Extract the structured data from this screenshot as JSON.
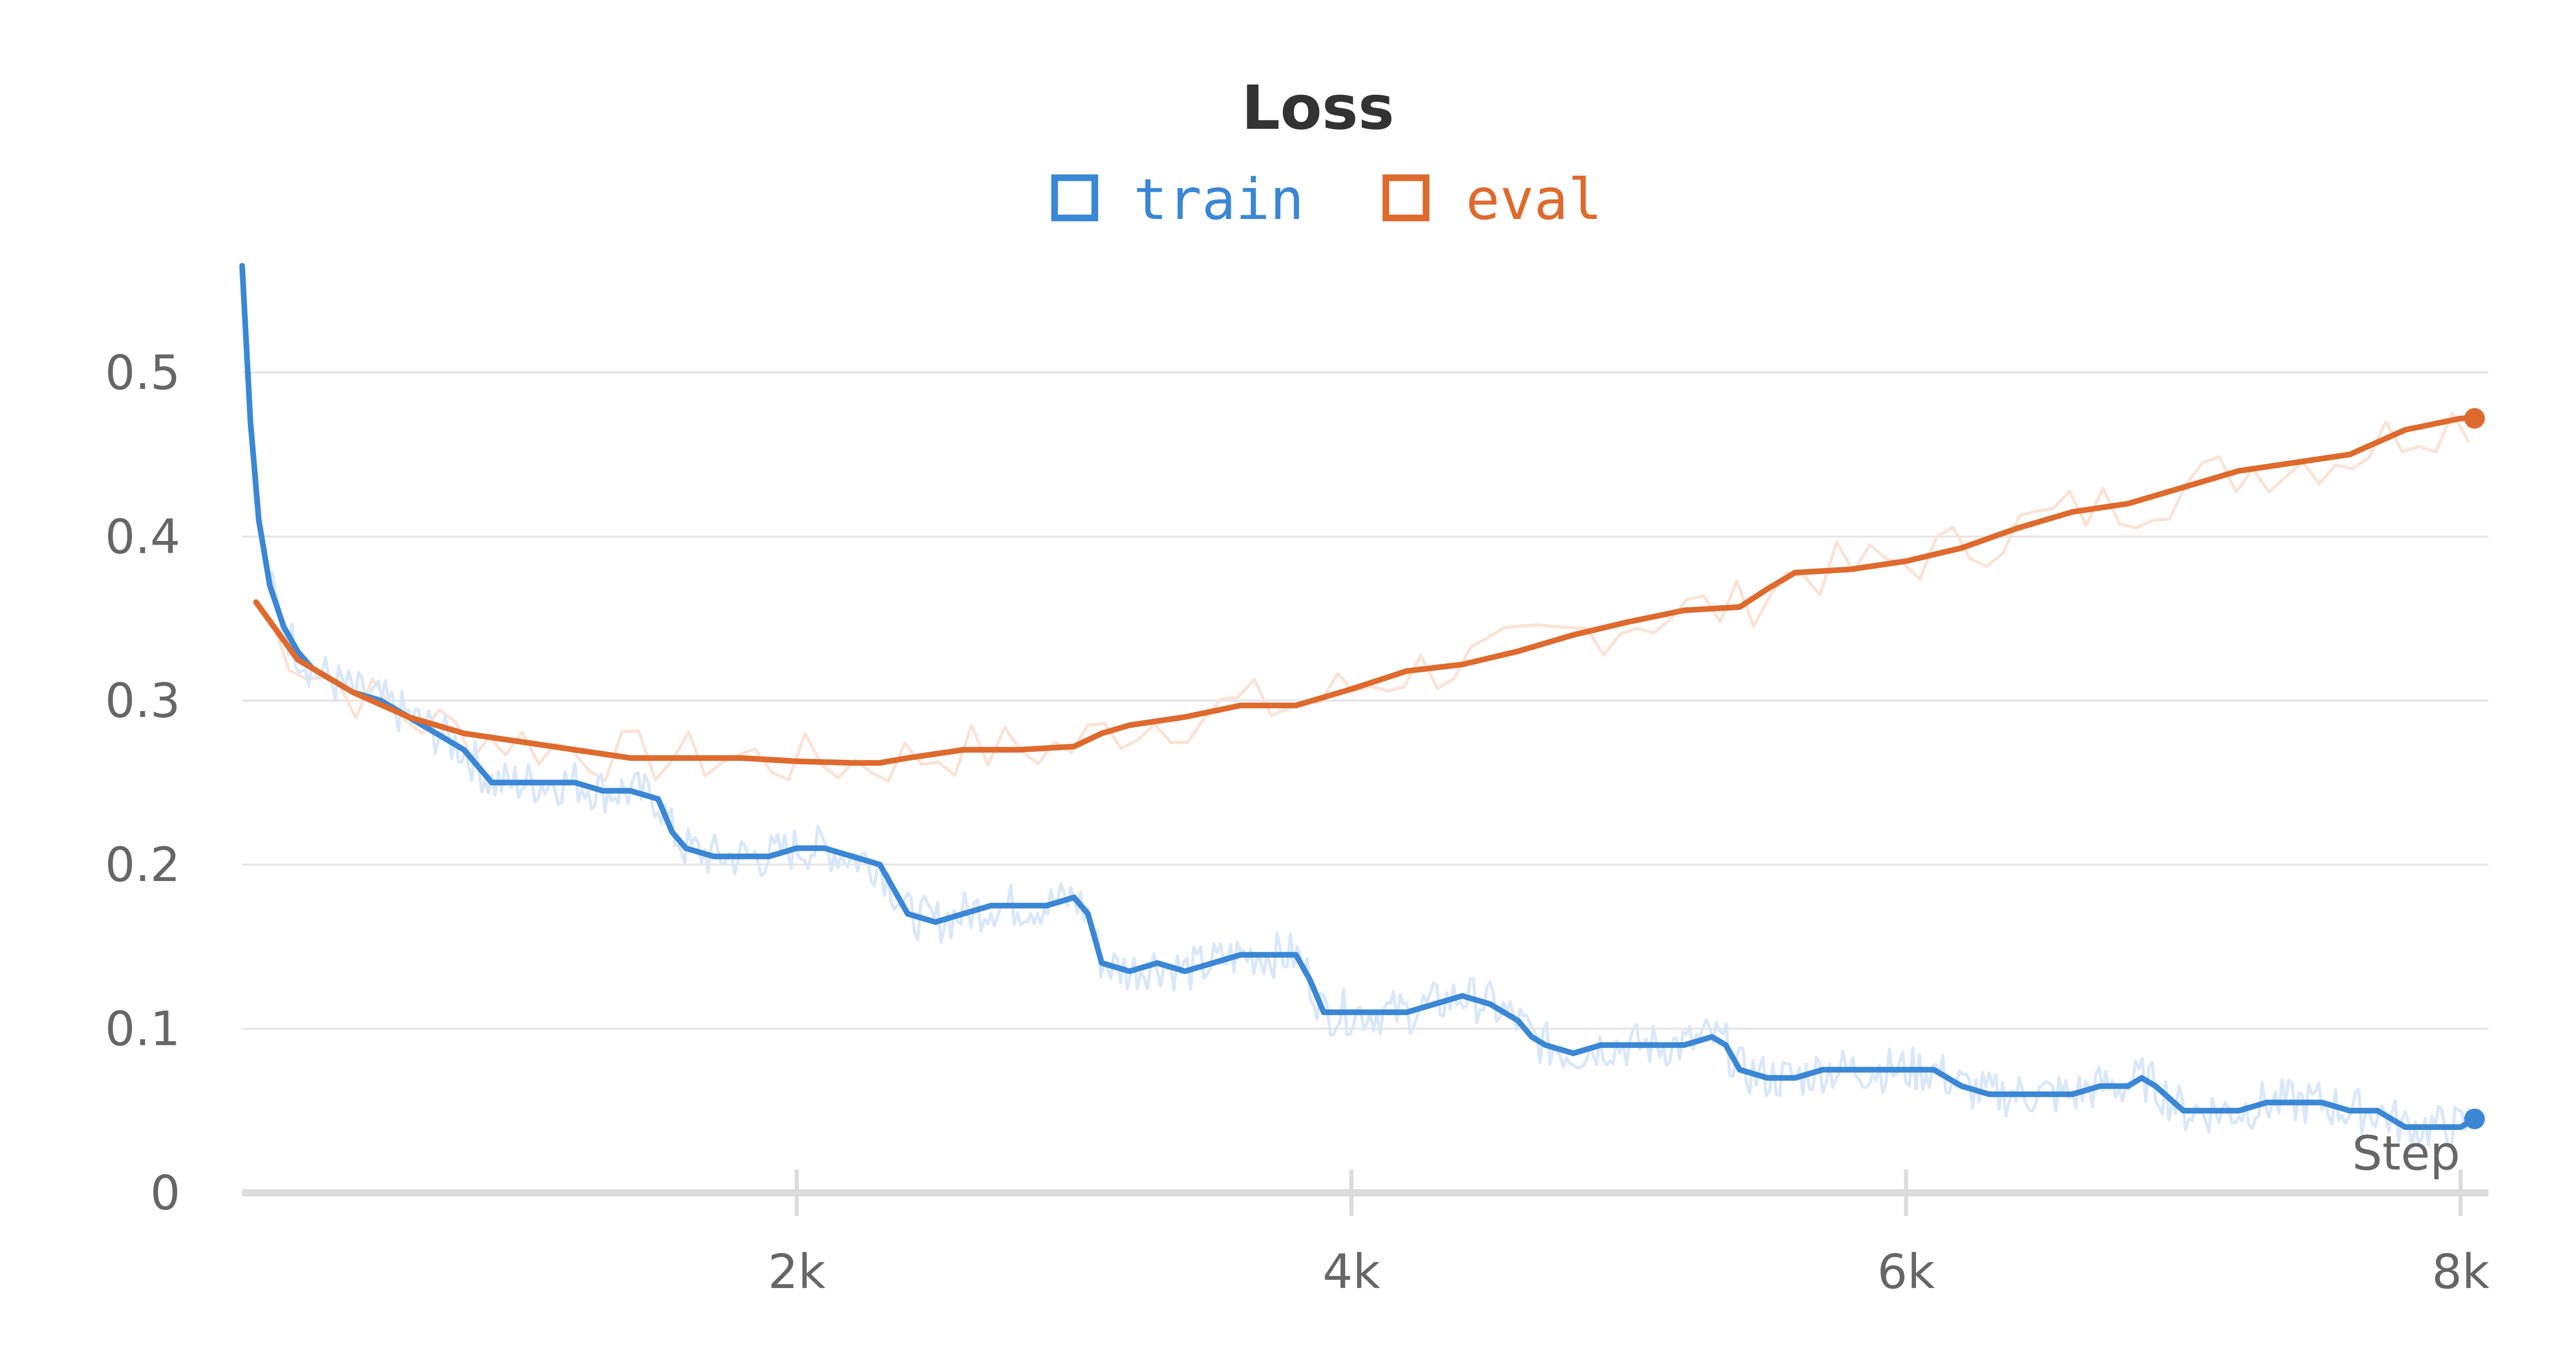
{
  "chart_data": {
    "type": "line",
    "title": "Loss",
    "xlabel": "Step",
    "ylabel": "",
    "xlim": [
      0,
      8100
    ],
    "ylim": [
      0,
      0.57
    ],
    "x_ticks": [
      2000,
      4000,
      6000,
      8000
    ],
    "x_tick_labels": [
      "2k",
      "4k",
      "6k",
      "8k"
    ],
    "y_ticks": [
      0,
      0.1,
      0.2,
      0.3,
      0.4,
      0.5
    ],
    "y_tick_labels": [
      "0",
      "0.1",
      "0.2",
      "0.3",
      "0.4",
      "0.5"
    ],
    "grid": true,
    "legend": "top-center",
    "series": [
      {
        "name": "train",
        "color": "#3a87d6",
        "raw_color": "#d9e8f9",
        "x": [
          0,
          30,
          60,
          100,
          150,
          200,
          250,
          300,
          350,
          400,
          500,
          600,
          700,
          800,
          850,
          900,
          1000,
          1100,
          1200,
          1300,
          1400,
          1500,
          1550,
          1600,
          1700,
          1800,
          1900,
          2000,
          2100,
          2200,
          2300,
          2350,
          2400,
          2500,
          2600,
          2700,
          2800,
          2900,
          3000,
          3050,
          3100,
          3200,
          3300,
          3400,
          3500,
          3600,
          3700,
          3800,
          3850,
          3900,
          4000,
          4100,
          4200,
          4300,
          4400,
          4500,
          4600,
          4650,
          4700,
          4800,
          4900,
          5000,
          5100,
          5200,
          5300,
          5350,
          5400,
          5500,
          5600,
          5700,
          5800,
          5900,
          6000,
          6100,
          6150,
          6200,
          6300,
          6400,
          6500,
          6600,
          6700,
          6800,
          6850,
          6900,
          7000,
          7100,
          7200,
          7300,
          7400,
          7500,
          7600,
          7700,
          7800,
          7900,
          8000,
          8050
        ],
        "values": [
          0.565,
          0.47,
          0.41,
          0.37,
          0.345,
          0.33,
          0.32,
          0.315,
          0.31,
          0.305,
          0.3,
          0.29,
          0.28,
          0.27,
          0.26,
          0.25,
          0.25,
          0.25,
          0.25,
          0.245,
          0.245,
          0.24,
          0.22,
          0.21,
          0.205,
          0.205,
          0.205,
          0.21,
          0.21,
          0.205,
          0.2,
          0.185,
          0.17,
          0.165,
          0.17,
          0.175,
          0.175,
          0.175,
          0.18,
          0.17,
          0.14,
          0.135,
          0.14,
          0.135,
          0.14,
          0.145,
          0.145,
          0.145,
          0.13,
          0.11,
          0.11,
          0.11,
          0.11,
          0.115,
          0.12,
          0.115,
          0.105,
          0.095,
          0.09,
          0.085,
          0.09,
          0.09,
          0.09,
          0.09,
          0.095,
          0.09,
          0.075,
          0.07,
          0.07,
          0.075,
          0.075,
          0.075,
          0.075,
          0.075,
          0.07,
          0.065,
          0.06,
          0.06,
          0.06,
          0.06,
          0.065,
          0.065,
          0.07,
          0.065,
          0.05,
          0.05,
          0.05,
          0.055,
          0.055,
          0.055,
          0.05,
          0.05,
          0.04,
          0.04,
          0.04,
          0.045
        ]
      },
      {
        "name": "eval",
        "color": "#df6a2d",
        "raw_color": "#fbe3d5",
        "x": [
          50,
          200,
          400,
          600,
          800,
          1000,
          1200,
          1400,
          1600,
          1800,
          2000,
          2200,
          2300,
          2400,
          2600,
          2800,
          3000,
          3100,
          3200,
          3400,
          3600,
          3800,
          4000,
          4200,
          4400,
          4600,
          4800,
          5000,
          5200,
          5400,
          5500,
          5600,
          5800,
          6000,
          6200,
          6400,
          6600,
          6800,
          7000,
          7200,
          7400,
          7600,
          7800,
          8000,
          8050
        ],
        "values": [
          0.36,
          0.325,
          0.305,
          0.29,
          0.28,
          0.275,
          0.27,
          0.265,
          0.265,
          0.265,
          0.263,
          0.262,
          0.262,
          0.265,
          0.27,
          0.27,
          0.272,
          0.28,
          0.285,
          0.29,
          0.297,
          0.297,
          0.307,
          0.318,
          0.322,
          0.33,
          0.34,
          0.348,
          0.355,
          0.357,
          0.368,
          0.378,
          0.38,
          0.385,
          0.393,
          0.405,
          0.415,
          0.42,
          0.43,
          0.44,
          0.445,
          0.45,
          0.465,
          0.472,
          0.472
        ]
      }
    ]
  }
}
